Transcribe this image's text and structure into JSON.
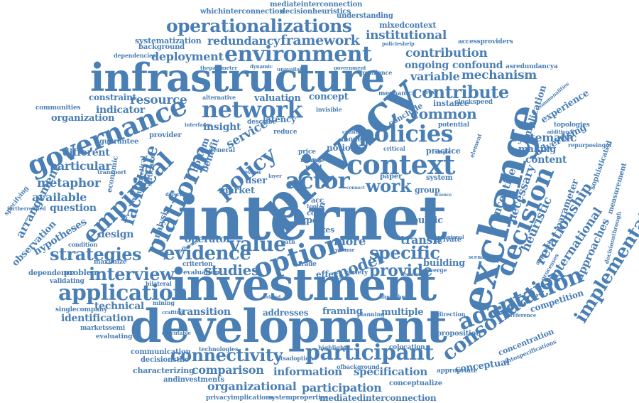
{
  "accent_color": "#4a7fb5",
  "words": {
    "internet": "internet",
    "investment": "investment",
    "development": "development",
    "infrastructure": "infrastructure",
    "privacy": "privacy",
    "exchange": "exchange",
    "governance": "governance",
    "environment": "environment",
    "operationalizations": "operationalizations",
    "context": "context",
    "option": "option",
    "policies": "policies",
    "network": "network",
    "platform": "platform",
    "empirical": "empirical",
    "actor": "actor",
    "decision": "decision",
    "adaptation": "adaptation",
    "consolidation": "consolidation",
    "implementation": "implementation",
    "participant": "participant",
    "application": "application",
    "connectivity": "connectivity",
    "evidence": "evidence",
    "value": "value",
    "strategies": "strategies",
    "interview": "interview",
    "work": "work",
    "specific": "specific",
    "provide": "provide",
    "model": "model",
    "studies": "studies",
    "policy": "policy",
    "contribute": "contribute",
    "mechanism": "mechanism",
    "redundancy": "redundancy",
    "framework": "framework",
    "institutional": "institutional",
    "contribution": "contribution",
    "deployment": "deployment",
    "ongoing": "ongoing",
    "confound": "confound",
    "variable": "variable",
    "common": "common",
    "resource": "resource",
    "indicator": "indicator",
    "constraint": "constraint",
    "organization": "organization",
    "arrangement": "arrangement",
    "metaphor": "metaphor",
    "available": "available",
    "particular": "particular",
    "different": "different",
    "facilitate": "facilitate",
    "service": "service",
    "insight": "insight",
    "comparison": "comparison",
    "organizational": "organizational",
    "participation": "participation",
    "information": "information",
    "specification": "specification",
    "technical": "technical",
    "transition": "transition",
    "identification": "identification",
    "relationship": "relationship",
    "heuristic": "heuristic",
    "international": "international",
    "necessary": "necessary",
    "incentive": "incentive",
    "approaches": "approaches",
    "parameter": "parameter",
    "advertising": "advertising",
    "systematic": "systematic",
    "content": "content",
    "making": "making",
    "experience": "experience",
    "implication": "implication",
    "competition": "competition",
    "building": "building",
    "transit": "transit",
    "more": "more",
    "public": "public",
    "design": "design",
    "hypotheses": "hypotheses",
    "observation": "observation",
    "question": "question",
    "operator": "operator",
    "effect": "effect",
    "addresses": "addresses",
    "framing": "framing",
    "multiple": "multiple",
    "conceptual": "conceptual",
    "concentration": "concentration",
    "systematization": "systematization",
    "mediateinterconnection": "mediateinterconnection",
    "whichinterconnection": "whichinterconnection",
    "decisionheuristics": "decisionheuristics",
    "understanding": "understanding",
    "mixedcontext": "mixedcontext",
    "accessproviders": "accessproviders",
    "asredundancya": "asredundancya",
    "mediatedinterconnection": "mediatedinterconnection",
    "privacyimplications": "privacyimplications",
    "systemproperties": "systemproperties",
    "conceptualize": "conceptualize",
    "andinvestments": "andinvestments",
    "characterizing": "characterizing",
    "communication": "communication",
    "decisionsthe": "decisionsthe",
    "valuation": "valuation",
    "concept": "concept",
    "instance": "instance",
    "conclude": "conclude",
    "latency": "latency",
    "describe": "describe",
    "reduce": "reduce",
    "notion": "notion",
    "mode": "mode",
    "cost": "cost",
    "paper": "paper",
    "user": "user",
    "market": "market",
    "benefit": "benefit",
    "bottom": "bottom",
    "analysis": "analysis",
    "economic": "economic",
    "guarantee": "guarantee",
    "communities": "communities",
    "background": "background",
    "dependencies": "dependencies",
    "alternative": "alternative",
    "clockspeed": "clockspeed",
    "potential": "potential",
    "practice": "practice",
    "group": "group",
    "private": "private",
    "converge": "converge",
    "trade": "trade",
    "variety": "variety",
    "volume": "volume",
    "planning": "planning",
    "direction": "direction",
    "proposition": "proposition",
    "appropriate": "appropriate",
    "colocation": "colocation",
    "highlight": "highlight",
    "itsadoption": "itsadoption",
    "ofbackground": "ofbackground",
    "technologies": "technologies",
    "executable": "executable",
    "evaluating": "evaluating",
    "singlecompany": "singlecompany",
    "marketssemi": "marketssemi",
    "validating": "validating",
    "dependence": "dependence",
    "problem": "problem",
    "maximize": "maximize",
    "condition": "condition",
    "specifying": "specifying",
    "furtherrefined": "furtherrefined",
    "transport": "transport",
    "measurement": "measurement",
    "sophisticated": "sophisticated",
    "decisionsthrough": "decisionsthrough",
    "intospecifications": "intospecifications",
    "topologies": "topologies",
    "additional": "additional",
    "commonalities": "commonalities",
    "repurposingof": "repurposingof",
    "bilateral": "bilateral",
    "criterion": "criterion",
    "evaluation": "evaluation",
    "system": "system",
    "critical": "critical",
    "mixed": "mixed",
    "most": "most",
    "price": "price",
    "type": "type",
    "term": "term",
    "ixes": "ixes",
    "acc": "acc",
    "tool": "tool",
    "path": "path",
    "stage": "stage",
    "layer": "layer",
    "review": "review",
    "general": "general",
    "provider": "provider",
    "theoretical": "theoretical",
    "structure": "structure",
    "interfaces": "interfaces",
    "invisible": "invisible",
    "mechanic": "mechanic",
    "resilience": "resilience",
    "government": "government",
    "dynamic": "dynamic",
    "unavailable": "unavailable",
    "theparameter": "theparameter",
    "policieshelp": "policieshelp",
    "proxy": "proxy",
    "single": "single",
    "regional": "regional",
    "element": "element",
    "scenario": "scenario",
    "approach": "approach",
    "processes": "processes",
    "deferral": "deferral",
    "influence": "influence",
    "crafting": "crafting",
    "mining": "mining",
    "preference": "preference",
    "related": "related",
    "algorithm": "algorithm",
    "literature": "literature",
    "country": "country",
    "connect": "connect",
    "science": "science"
  }
}
